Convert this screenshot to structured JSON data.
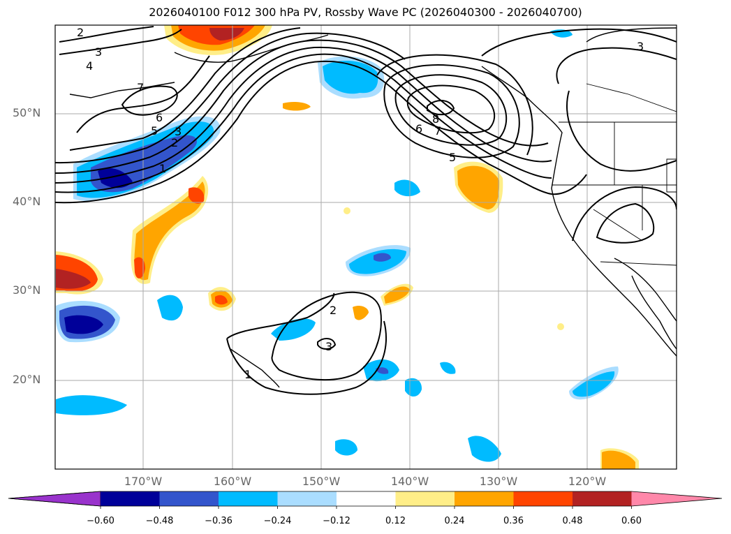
{
  "title": "2026040100 F012 300 hPa PV, Rossby Wave PC (2026040300 - 2026040700)",
  "lat_labels": [
    "50°N",
    "40°N",
    "30°N",
    "20°N"
  ],
  "lon_labels": [
    "170°W",
    "160°W",
    "150°W",
    "140°W",
    "130°W",
    "120°W"
  ],
  "colorbar": {
    "ticks": [
      "−0.60",
      "−0.48",
      "−0.36",
      "−0.24",
      "−0.12",
      "0.12",
      "0.24",
      "0.36",
      "0.48",
      "0.60"
    ],
    "colors": [
      "#9933cc",
      "#000099",
      "#3355cc",
      "#00bbff",
      "#aaddff",
      "#ffffff",
      "#ffee88",
      "#ffa500",
      "#ff4400",
      "#b22222",
      "#ff88aa"
    ]
  },
  "contour_labels": {
    "west": [
      "2",
      "3",
      "4",
      "7",
      "6",
      "5",
      "3",
      "2",
      "1"
    ],
    "center": [
      "8",
      "6",
      "7",
      "5"
    ],
    "northeast": [
      "3"
    ],
    "south": [
      "2",
      "3",
      "1"
    ]
  }
}
